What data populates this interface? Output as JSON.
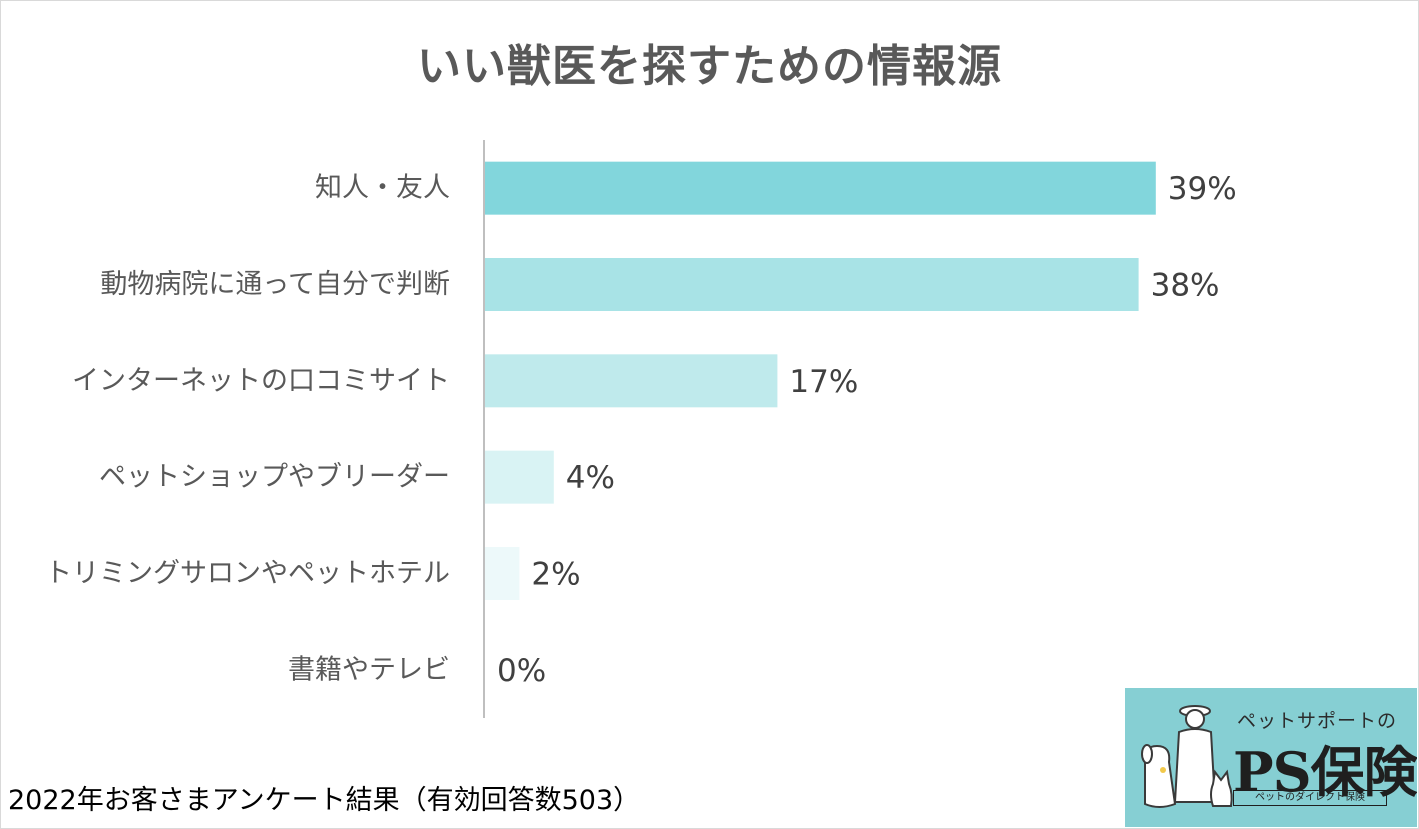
{
  "title": "いい獣医を探すための情報源",
  "footer": "2022年お客さまアンケート結果（有効回答数503）",
  "logo": {
    "subtitle": "ペットサポートの",
    "name": "PS保険",
    "tagline": "ペットのダイレクト保険"
  },
  "colors": {
    "bars": [
      "#82d6dc",
      "#a8e3e6",
      "#bfeaec",
      "#d9f3f4",
      "#edf9fa",
      "#f5fcfc"
    ],
    "axis": "#bfbfbf",
    "logo_bg": "#86cfd3"
  },
  "chart_data": {
    "type": "bar",
    "orientation": "horizontal",
    "title": "いい獣医を探すための情報源",
    "categories": [
      "知人・友人",
      "動物病院に通って自分で判断",
      "インターネットの口コミサイト",
      "ペットショップやブリーダー",
      "トリミングサロンやペットホテル",
      "書籍やテレビ"
    ],
    "values": [
      39,
      38,
      17,
      4,
      2,
      0
    ],
    "value_labels": [
      "39%",
      "38%",
      "17%",
      "4%",
      "2%",
      "0%"
    ],
    "unit": "%",
    "xlim": [
      0,
      50
    ],
    "grid": false,
    "legend": "none"
  }
}
